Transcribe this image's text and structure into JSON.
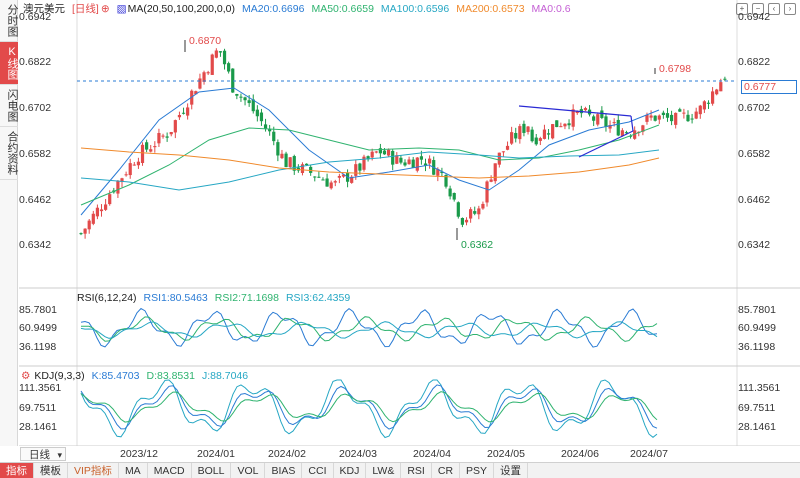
{
  "sidebar": {
    "tabs": [
      {
        "label": "分时图",
        "active": false
      },
      {
        "label": "K线图",
        "active": true
      },
      {
        "label": "闪电图",
        "active": false
      },
      {
        "label": "合约资料",
        "active": false
      }
    ]
  },
  "main_legend": {
    "symbol": "澳元美元",
    "period": "[日线]",
    "ma_params": "MA(20,50,100,200,0,0)",
    "ma20": "MA20:0.6696",
    "ma50": "MA50:0.6659",
    "ma100": "MA100:0.6596",
    "ma200": "MA200:0.6573",
    "ma0": "MA0:0.6"
  },
  "price_axis": {
    "ticks": [
      "0.6942",
      "0.6822",
      "0.6702",
      "0.6582",
      "0.6462",
      "0.6342"
    ],
    "current_price": "0.6777",
    "high_label": "0.6870",
    "low_label": "0.6362",
    "recent_high_label": "0.6798"
  },
  "rsi_panel": {
    "title": "RSI(6,12,24)",
    "rsi1": "RSI1:80.5463",
    "rsi2": "RSI2:71.1698",
    "rsi3": "RSI3:62.4359",
    "ticks": [
      "85.7801",
      "60.9499",
      "36.1198"
    ]
  },
  "kdj_panel": {
    "title": "KDJ(9,3,3)",
    "k": "K:85.4703",
    "d": "D:83.8531",
    "j": "J:88.7046",
    "ticks": [
      "111.3561",
      "69.7511",
      "28.1461"
    ]
  },
  "x_axis": {
    "labels": [
      "2023/12",
      "2024/01",
      "2024/02",
      "2024/03",
      "2024/04",
      "2024/05",
      "2024/06",
      "2024/07"
    ]
  },
  "period_select": "日线",
  "toolbar": {
    "items": [
      "指标",
      "模板",
      "VIP指标",
      "MA",
      "MACD",
      "BOLL",
      "VOL",
      "BIAS",
      "CCI",
      "KDJ",
      "LW&",
      "RSI",
      "CR",
      "PSY",
      "设置"
    ]
  },
  "colors": {
    "up": "#e24a4a",
    "down": "#1a9a4a",
    "ma20": "#2a7bd4",
    "ma50": "#2fb36f",
    "ma100": "#26a7c4",
    "ma200": "#f08a2c",
    "ma0": "#c45fd4",
    "trendline": "#2a2ad4"
  }
}
